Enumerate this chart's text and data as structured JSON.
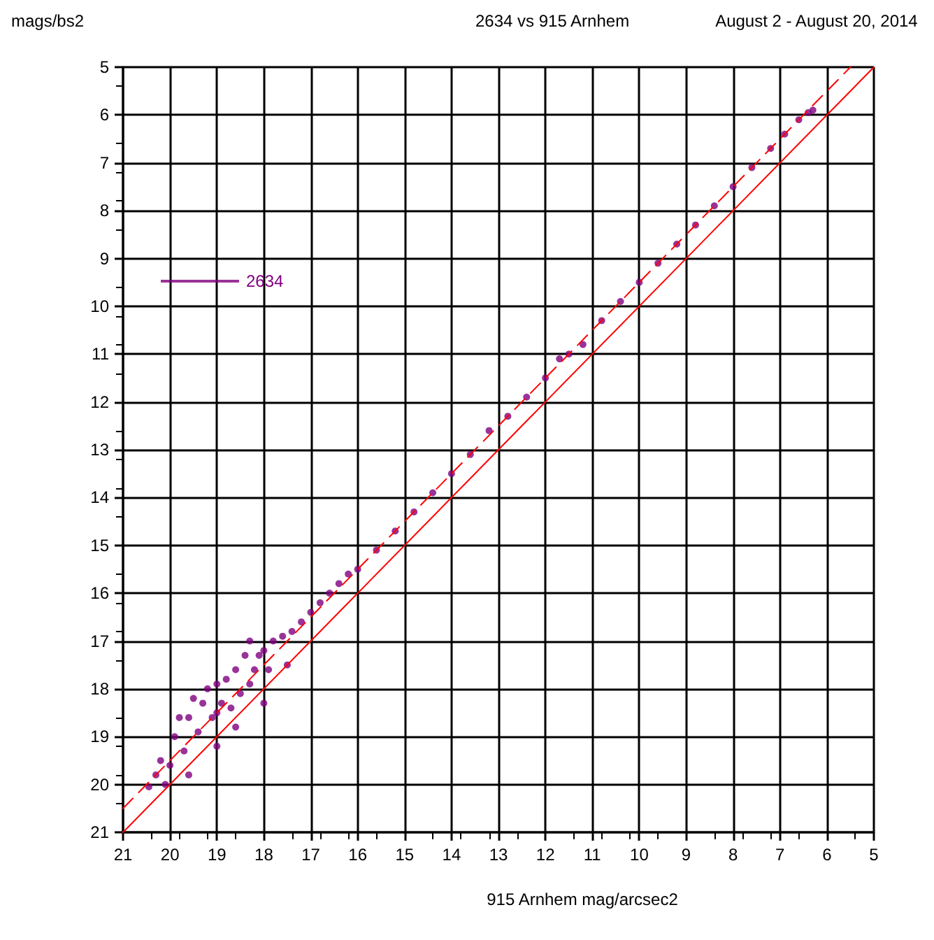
{
  "chart_data": {
    "type": "scatter",
    "title": "2634 vs 915 Arnhem",
    "subtitle": "August 2 - August 20, 2014",
    "xlabel": "915 Arnhem mag/arcsec2",
    "ylabel": "mags/bs2",
    "xlim": [
      21,
      5
    ],
    "ylim": [
      21,
      5
    ],
    "xticks": [
      21,
      20,
      19,
      18,
      17,
      16,
      15,
      14,
      13,
      12,
      11,
      10,
      9,
      8,
      7,
      6,
      5
    ],
    "yticks": [
      5,
      6,
      7,
      8,
      9,
      10,
      11,
      12,
      13,
      14,
      15,
      16,
      17,
      18,
      19,
      20,
      21
    ],
    "grid": true,
    "legend": "top left",
    "marker": "circle",
    "series": [
      {
        "name": "2634",
        "color": "#800080",
        "x": [
          20.45,
          20.3,
          20.2,
          20.0,
          19.9,
          19.8,
          19.7,
          19.6,
          19.5,
          19.4,
          19.3,
          19.2,
          19.1,
          19.0,
          19.0,
          19.0,
          18.9,
          18.8,
          18.7,
          18.6,
          18.5,
          18.4,
          18.3,
          18.3,
          18.2,
          18.1,
          18.0,
          17.9,
          17.8,
          17.6,
          17.4,
          17.2,
          17.0,
          16.8,
          16.6,
          16.4,
          16.2,
          16.0,
          15.6,
          15.2,
          14.8,
          14.4,
          14.0,
          13.6,
          13.2,
          12.8,
          12.4,
          12.0,
          11.7,
          11.5,
          11.2,
          10.8,
          10.4,
          10.0,
          9.6,
          9.2,
          8.8,
          8.4,
          8.0,
          7.6,
          7.2,
          6.9,
          6.6,
          6.4,
          6.3,
          19.6,
          18.6,
          18.0,
          17.5,
          20.1
        ],
        "values": [
          20.05,
          19.8,
          19.5,
          19.6,
          19.0,
          18.6,
          19.3,
          18.6,
          18.2,
          18.9,
          18.3,
          18.0,
          18.6,
          17.9,
          18.5,
          19.2,
          18.3,
          17.8,
          18.4,
          17.6,
          18.1,
          17.3,
          17.0,
          17.9,
          17.6,
          17.3,
          17.2,
          17.6,
          17.0,
          16.9,
          16.8,
          16.6,
          16.4,
          16.2,
          16.0,
          15.8,
          15.6,
          15.5,
          15.1,
          14.7,
          14.3,
          13.9,
          13.5,
          13.1,
          12.6,
          12.3,
          11.9,
          11.5,
          11.1,
          11.0,
          10.8,
          10.3,
          9.9,
          9.5,
          9.1,
          8.7,
          8.3,
          7.9,
          7.5,
          7.1,
          6.7,
          6.4,
          6.1,
          5.95,
          5.9,
          19.8,
          18.8,
          18.3,
          17.5,
          20.0
        ]
      },
      {
        "type": "line",
        "marker": "none",
        "color": "#ff0000",
        "line_style": "dashed",
        "x": [
          21,
          5.5
        ],
        "values": [
          20.5,
          5
        ]
      },
      {
        "type": "line",
        "marker": "none",
        "color": "#ff0000",
        "line_style": "solid",
        "x": [
          21,
          5
        ],
        "values": [
          21,
          5
        ]
      }
    ]
  }
}
